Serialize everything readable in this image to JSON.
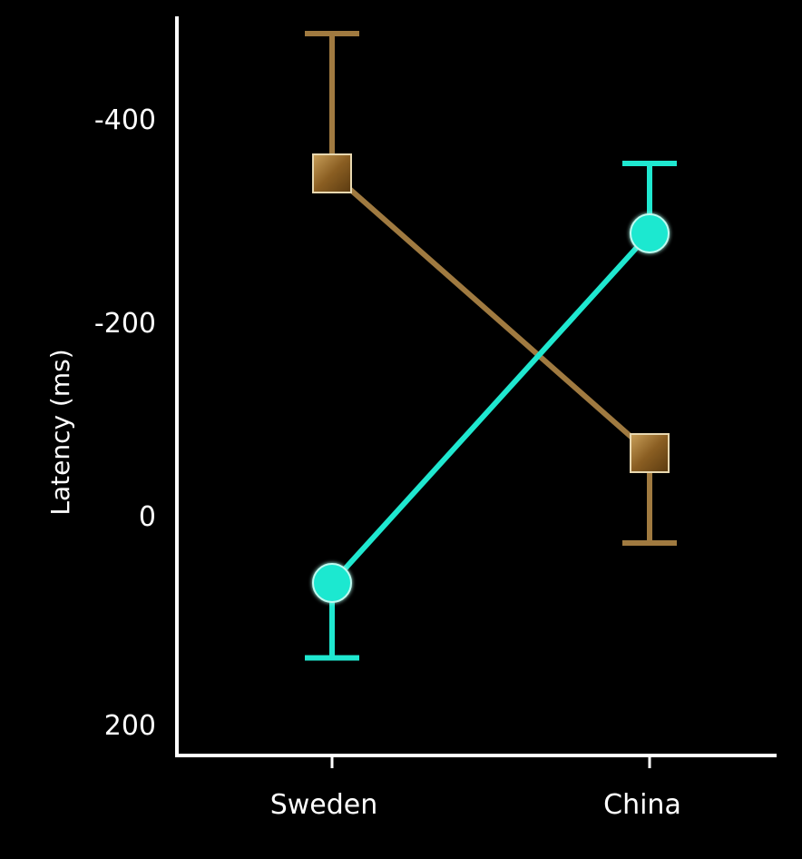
{
  "chart_data": {
    "type": "line",
    "title": "",
    "xlabel": "",
    "ylabel": "Latency (ms)",
    "categories": [
      "Sweden",
      "China"
    ],
    "y_axis": {
      "inverted": true,
      "ylim": [
        220,
        -490
      ],
      "ticks": [
        -400,
        -200,
        0,
        200
      ],
      "tick_labels": [
        "-400",
        "-200",
        "0",
        "200"
      ]
    },
    "grid": false,
    "legend": "none",
    "series": [
      {
        "color": "#9a7338",
        "marker": "square",
        "values": [
          -340,
          -60
        ],
        "error_bars": [
          {
            "direction": "up",
            "end": -480
          },
          {
            "direction": "down",
            "end": 30
          }
        ]
      },
      {
        "color": "#1fe8d0",
        "marker": "circle",
        "values": [
          70,
          -280
        ],
        "error_bars": [
          {
            "direction": "down",
            "end": 145
          },
          {
            "direction": "up",
            "end": -350
          }
        ]
      }
    ]
  }
}
